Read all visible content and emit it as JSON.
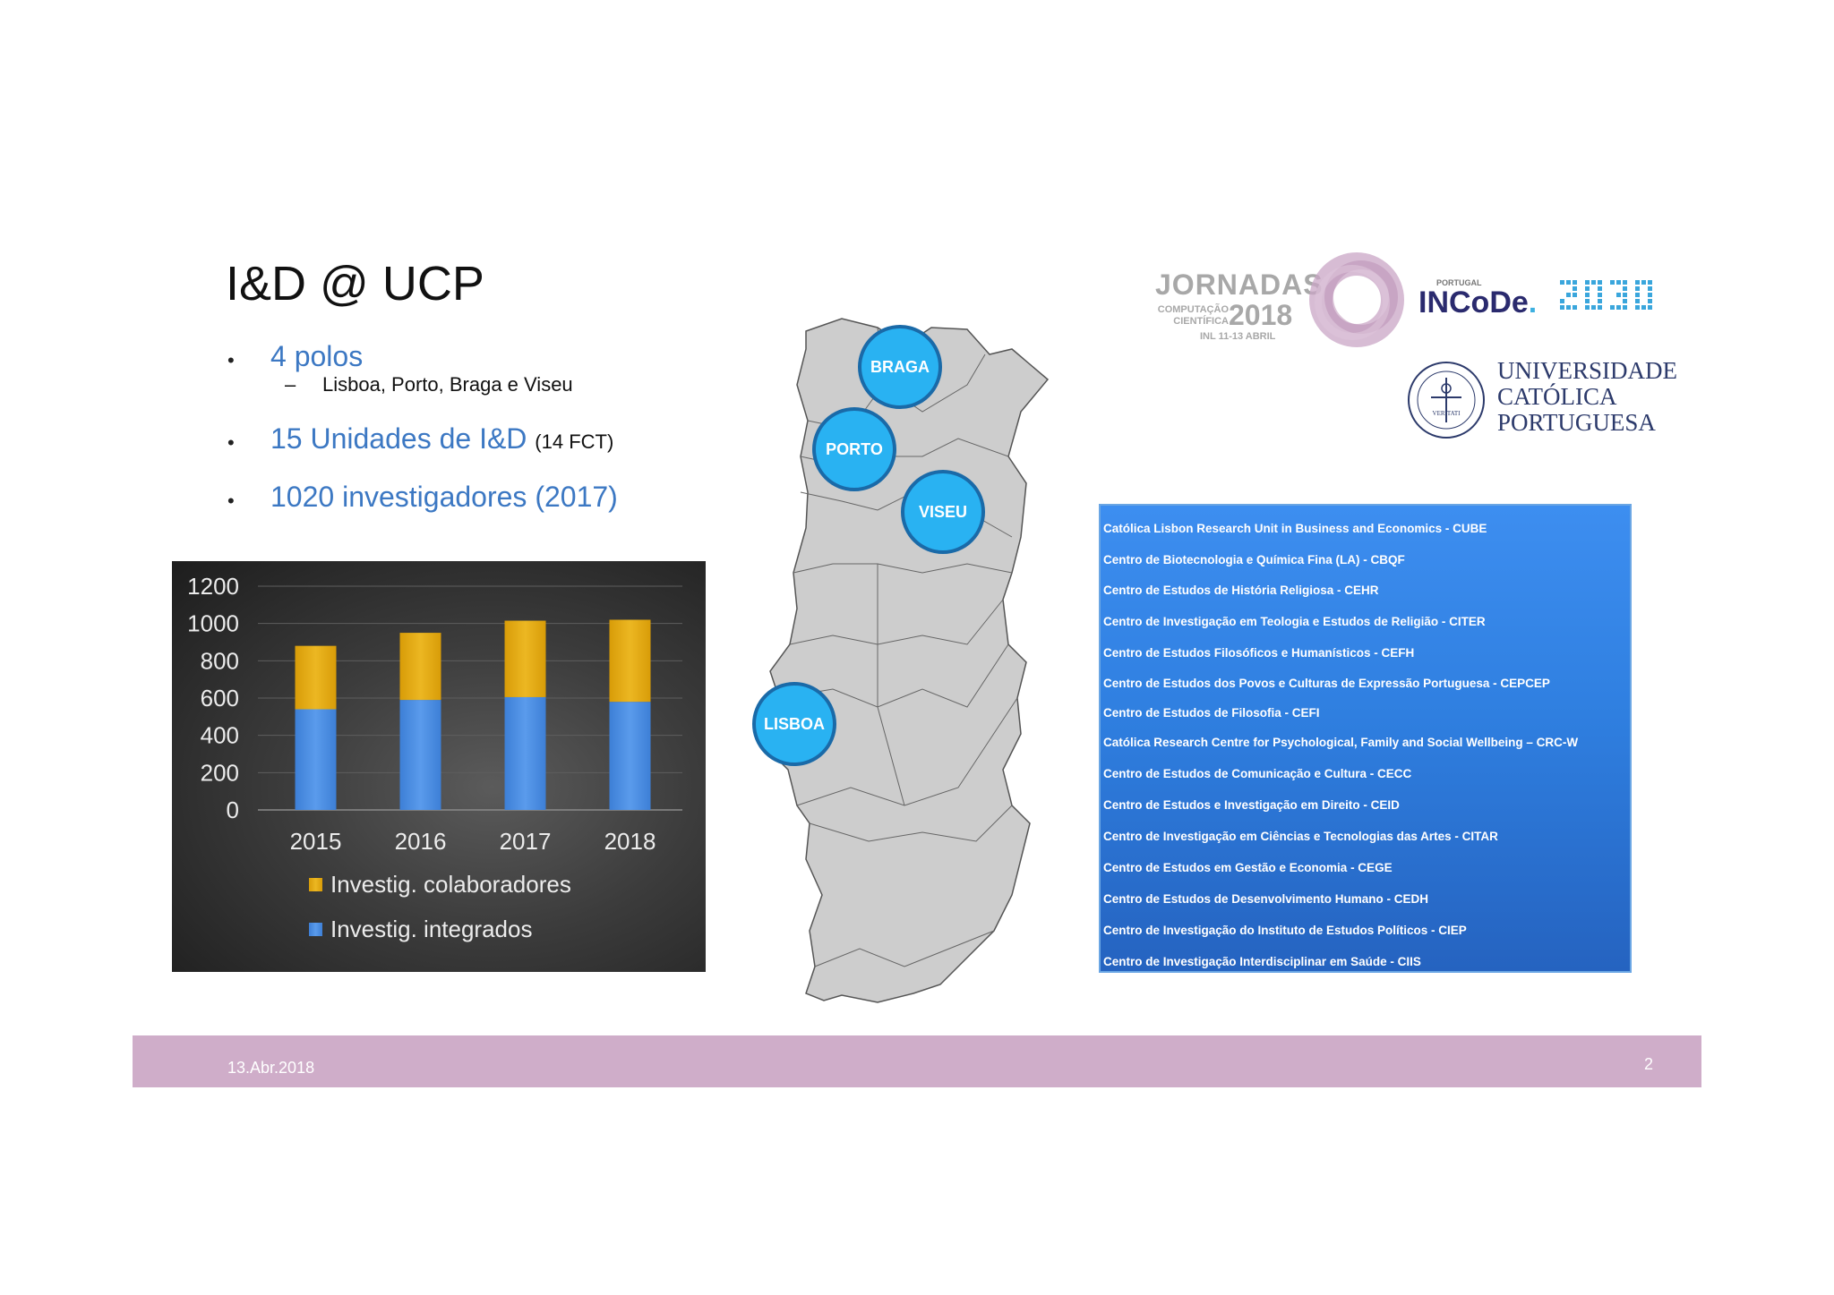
{
  "slide": {
    "title": "I&D @ UCP",
    "bullets": [
      {
        "text": "4 polos",
        "sub": "Lisboa, Porto, Braga e Viseu"
      },
      {
        "text": "15 Unidades de I&D",
        "note": "(14 FCT)"
      },
      {
        "text": "1020 investigadores (2017)"
      }
    ],
    "bullet_symbol": "•",
    "dash_symbol": "–"
  },
  "chart_data": {
    "type": "bar",
    "stacked": true,
    "categories": [
      "2015",
      "2016",
      "2017",
      "2018"
    ],
    "series": [
      {
        "name": "Investig. integrados",
        "values": [
          540,
          590,
          605,
          580
        ],
        "color": "#4f8fe0"
      },
      {
        "name": "Investig. colaboradores",
        "values": [
          340,
          360,
          410,
          440
        ],
        "color": "#e3ac12"
      }
    ],
    "ylim": [
      0,
      1200
    ],
    "yticks": [
      "0",
      "200",
      "400",
      "600",
      "800",
      "1000",
      "1200"
    ],
    "legend_position": "bottom",
    "grid": true
  },
  "map": {
    "cities": [
      "BRAGA",
      "PORTO",
      "VISEU",
      "LISBOA"
    ],
    "city_color": "#29b2f2"
  },
  "units": [
    "Católica Lisbon Research Unit in Business and Economics - CUBE",
    "Centro de Biotecnologia e Química Fina (LA) - CBQF",
    "Centro de Estudos de História Religiosa - CEHR",
    "Centro de Investigação em Teologia e Estudos de Religião - CITER",
    "Centro de Estudos Filosóficos e Humanísticos - CEFH",
    "Centro de Estudos dos Povos e Culturas de Expressão Portuguesa - CEPCEP",
    "Centro de Estudos de Filosofia - CEFI",
    "Católica Research Centre for Psychological, Family and Social Wellbeing – CRC-W",
    "Centro de Estudos de Comunicação e Cultura - CECC",
    "Centro de Estudos e Investigação em Direito - CEID",
    "Centro de Investigação em Ciências e Tecnologias das Artes - CITAR",
    "Centro de Estudos em Gestão e Economia - CEGE",
    "Centro de Estudos de Desenvolvimento Humano - CEDH",
    "Centro de Investigação do Instituto de Estudos Políticos - CIEP",
    "Centro de Investigação Interdisciplinar em Saúde  - CIIS"
  ],
  "logos": {
    "jornadas": {
      "word": "JORNADAS",
      "sub1": "COMPUTAÇÃO",
      "sub2": "CIENTÍFICA",
      "year": "2018",
      "place": "INL",
      "dates": "11-13 ABRIL"
    },
    "incode": {
      "country": "PORTUGAL",
      "word": "INCoDe",
      "dot": ".",
      "suffix": "2030"
    },
    "ucp": {
      "line1": "UNIVERSIDADE",
      "line2": "CATÓLICA",
      "line3": "PORTUGUESA",
      "seal_motto": "VERITATI"
    }
  },
  "footer": {
    "date": "13.Abr.2018",
    "page": "2",
    "color": "#cfadc9"
  }
}
